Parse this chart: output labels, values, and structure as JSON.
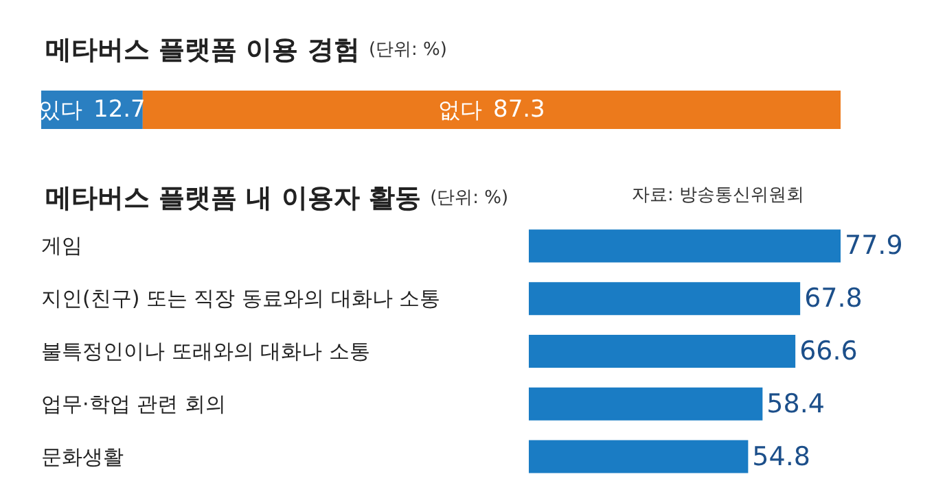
{
  "chart_data": [
    {
      "type": "bar",
      "title": "메타버스 플랫폼 이용 경험",
      "subtitle": "(단위: %)",
      "orientation": "horizontal",
      "stacked": true,
      "categories": [
        null
      ],
      "data_labels": true,
      "series": [
        {
          "name": "있다",
          "color": "#2a7fc1",
          "values": [
            12.7
          ]
        },
        {
          "name": "없다",
          "color": "#ec7a1c",
          "values": [
            87.3
          ]
        }
      ]
    },
    {
      "type": "bar",
      "title": "메타버스 플랫폼 내 이용자 활동",
      "subtitle": "(단위: %)",
      "annotations": [
        "자료: 방송통신위원회"
      ],
      "orientation": "horizontal",
      "data_labels": true,
      "categories": [
        "게임",
        "지인(친구) 또는 직장 동료와의 대화나 소통",
        "불특정인이나 또래와의 대화나 소통",
        "업무·학업 관련 회의",
        "문화생활"
      ],
      "values": [
        77.9,
        67.8,
        66.6,
        58.4,
        54.8
      ],
      "color": "#1a7cc4"
    }
  ]
}
